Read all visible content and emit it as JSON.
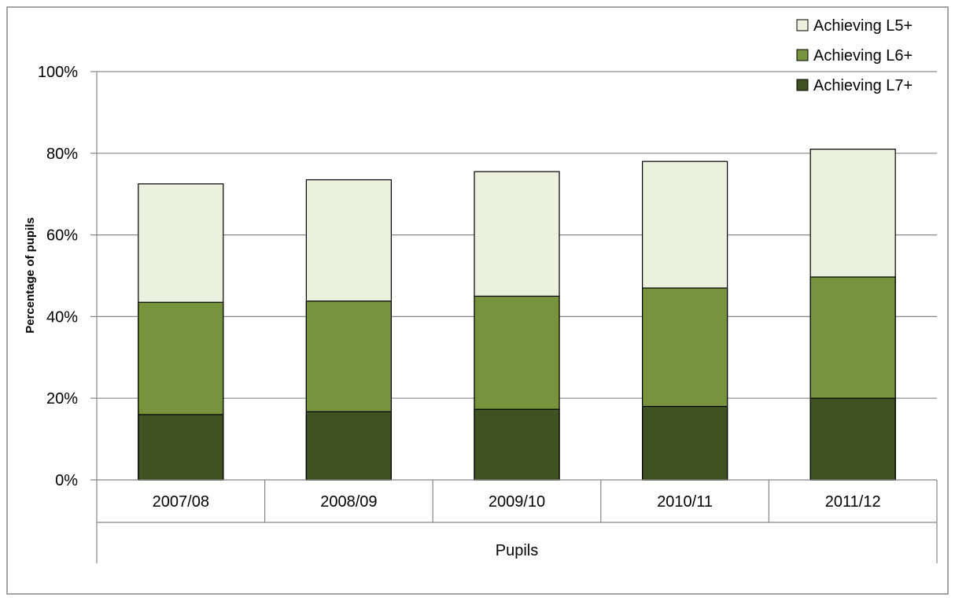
{
  "chart_data": {
    "type": "bar",
    "stacked": false,
    "overlapping": true,
    "categories": [
      "2007/08",
      "2008/09",
      "2009/10",
      "2010/11",
      "2011/12"
    ],
    "series": [
      {
        "name": "Achieving L5+",
        "values": [
          72.5,
          73.5,
          75.5,
          78,
          81
        ],
        "color": "#ebf1de"
      },
      {
        "name": "Achieving L6+",
        "values": [
          43.5,
          43.8,
          45,
          47,
          49.7
        ],
        "color": "#77933c"
      },
      {
        "name": "Achieving L7+",
        "values": [
          16,
          16.7,
          17.3,
          18,
          20
        ],
        "color": "#3f5222"
      }
    ],
    "title": "",
    "xlabel": "Pupils",
    "ylabel": "Percentage of pupils",
    "ylim": [
      0,
      100
    ],
    "yticks": [
      0,
      20,
      40,
      60,
      80,
      100
    ],
    "ytick_labels": [
      "0%",
      "20%",
      "40%",
      "60%",
      "80%",
      "100%"
    ],
    "grid": true,
    "legend_position": "top-right"
  }
}
